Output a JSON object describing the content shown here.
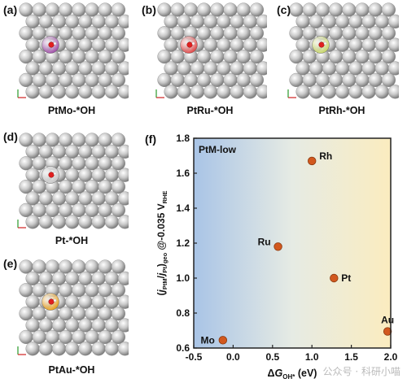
{
  "panels": [
    {
      "label": "(a)",
      "caption": "PtMo-*OH",
      "adsorbate_color": "#a050a8"
    },
    {
      "label": "(b)",
      "caption": "PtRu-*OH",
      "adsorbate_color": "#e04848"
    },
    {
      "label": "(c)",
      "caption": "PtRh-*OH",
      "adsorbate_color": "#c8d66a"
    },
    {
      "label": "(d)",
      "caption": "Pt-*OH",
      "adsorbate_color": "#c8c8c8"
    },
    {
      "label": "(e)",
      "caption": "PtAu-*OH",
      "adsorbate_color": "#e8a020"
    }
  ],
  "chart_label": "(f)",
  "watermark": "公众号 · 科研小喵",
  "colors": {
    "gradient_left": "#a9c4e6",
    "gradient_right": "#fbecbf",
    "marker": "#d2581e",
    "oxygen": "#e02020"
  },
  "chart_data": {
    "type": "scatter",
    "annotation": "PtM-low",
    "xlabel": "ΔG_OH* (eV)",
    "ylabel": "(j_PtM/j_Pt)_geo @-0.035 V_RHE",
    "xlim": [
      -0.5,
      2.0
    ],
    "ylim": [
      0.6,
      1.8
    ],
    "xticks": [
      "-0.5",
      "0.0",
      "0.5",
      "1.0",
      "1.5",
      "2.0"
    ],
    "yticks": [
      "0.6",
      "0.8",
      "1.0",
      "1.2",
      "1.4",
      "1.6",
      "1.8"
    ],
    "points": [
      {
        "name": "Mo",
        "x": -0.13,
        "y": 0.645
      },
      {
        "name": "Ru",
        "x": 0.57,
        "y": 1.18
      },
      {
        "name": "Rh",
        "x": 1.0,
        "y": 1.67
      },
      {
        "name": "Pt",
        "x": 1.28,
        "y": 1.0
      },
      {
        "name": "Au",
        "x": 1.96,
        "y": 0.695
      }
    ]
  }
}
